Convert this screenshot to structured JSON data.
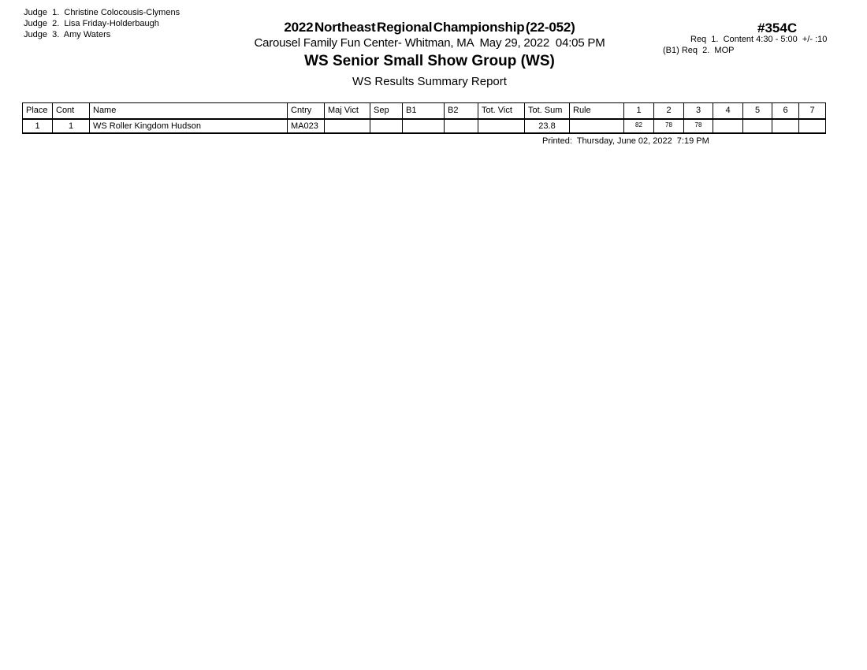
{
  "page": {
    "background_color": "#ffffff",
    "text_color": "#000000"
  },
  "judges": {
    "lines": [
      "Judge  1.  Christine Colocousis-Clymens",
      "Judge  2.  Lisa Friday-Holderbaugh",
      "Judge  3.  Amy Waters"
    ]
  },
  "header": {
    "title": "2022 Northeast Regional Championship (22-052)",
    "venue_line": "Carousel Family Fun Center- Whitman, MA  May 29, 2022  04:05 PM",
    "event_title": "WS Senior Small Show Group (WS)",
    "report_title": "WS Results Summary Report"
  },
  "event_info": {
    "event_number": "#354C",
    "req_line_1": "Req  1.  Content 4:30 - 5:00  +/- :10",
    "req_line_2": "(B1) Req  2.  MOP"
  },
  "results_table": {
    "columns": [
      "Place",
      "Cont",
      "Name",
      "Cntry",
      "Maj Vict",
      "Sep",
      "B1",
      "B2",
      "Tot. Vict",
      "Tot. Sum",
      "Rule",
      "1",
      "2",
      "3",
      "4",
      "5",
      "6",
      "7"
    ],
    "rows": [
      {
        "place": "1",
        "cont": "1",
        "name": "WS Roller Kingdom Hudson",
        "cntry": "MA023",
        "maj_vict": "",
        "sep": "",
        "b1": "",
        "b2": "",
        "tot_vict": "",
        "tot_sum": "23.8",
        "rule": "",
        "judge_scores": [
          "82",
          "78",
          "78",
          "",
          "",
          "",
          ""
        ]
      }
    ]
  },
  "footer": {
    "printed_line": "Printed:  Thursday, June 02, 2022  7:19 PM"
  }
}
